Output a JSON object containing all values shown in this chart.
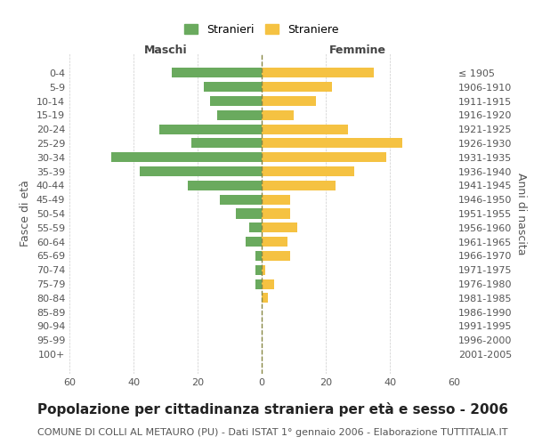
{
  "age_groups": [
    "0-4",
    "5-9",
    "10-14",
    "15-19",
    "20-24",
    "25-29",
    "30-34",
    "35-39",
    "40-44",
    "45-49",
    "50-54",
    "55-59",
    "60-64",
    "65-69",
    "70-74",
    "75-79",
    "80-84",
    "85-89",
    "90-94",
    "95-99",
    "100+"
  ],
  "birth_years": [
    "2001-2005",
    "1996-2000",
    "1991-1995",
    "1986-1990",
    "1981-1985",
    "1976-1980",
    "1971-1975",
    "1966-1970",
    "1961-1965",
    "1956-1960",
    "1951-1955",
    "1946-1950",
    "1941-1945",
    "1936-1940",
    "1931-1935",
    "1926-1930",
    "1921-1925",
    "1916-1920",
    "1911-1915",
    "1906-1910",
    "≤ 1905"
  ],
  "maschi": [
    28,
    18,
    16,
    14,
    32,
    22,
    47,
    38,
    23,
    13,
    8,
    4,
    5,
    2,
    2,
    2,
    0,
    0,
    0,
    0,
    0
  ],
  "femmine": [
    35,
    22,
    17,
    10,
    27,
    44,
    39,
    29,
    23,
    9,
    9,
    11,
    8,
    9,
    1,
    4,
    2,
    0,
    0,
    0,
    0
  ],
  "male_color": "#6aaa5e",
  "female_color": "#f5c242",
  "grid_color": "#cccccc",
  "center_line_color": "#888844",
  "background_color": "#ffffff",
  "title": "Popolazione per cittadinanza straniera per età e sesso - 2006",
  "subtitle": "COMUNE DI COLLI AL METAURO (PU) - Dati ISTAT 1° gennaio 2006 - Elaborazione TUTTITALIA.IT",
  "ylabel_left": "Fasce di età",
  "ylabel_right": "Anni di nascita",
  "xlabel_left": "Maschi",
  "xlabel_right": "Femmine",
  "legend_stranieri": "Stranieri",
  "legend_straniere": "Straniere",
  "xlim": 60,
  "title_fontsize": 11,
  "subtitle_fontsize": 8,
  "tick_fontsize": 8,
  "label_fontsize": 9
}
